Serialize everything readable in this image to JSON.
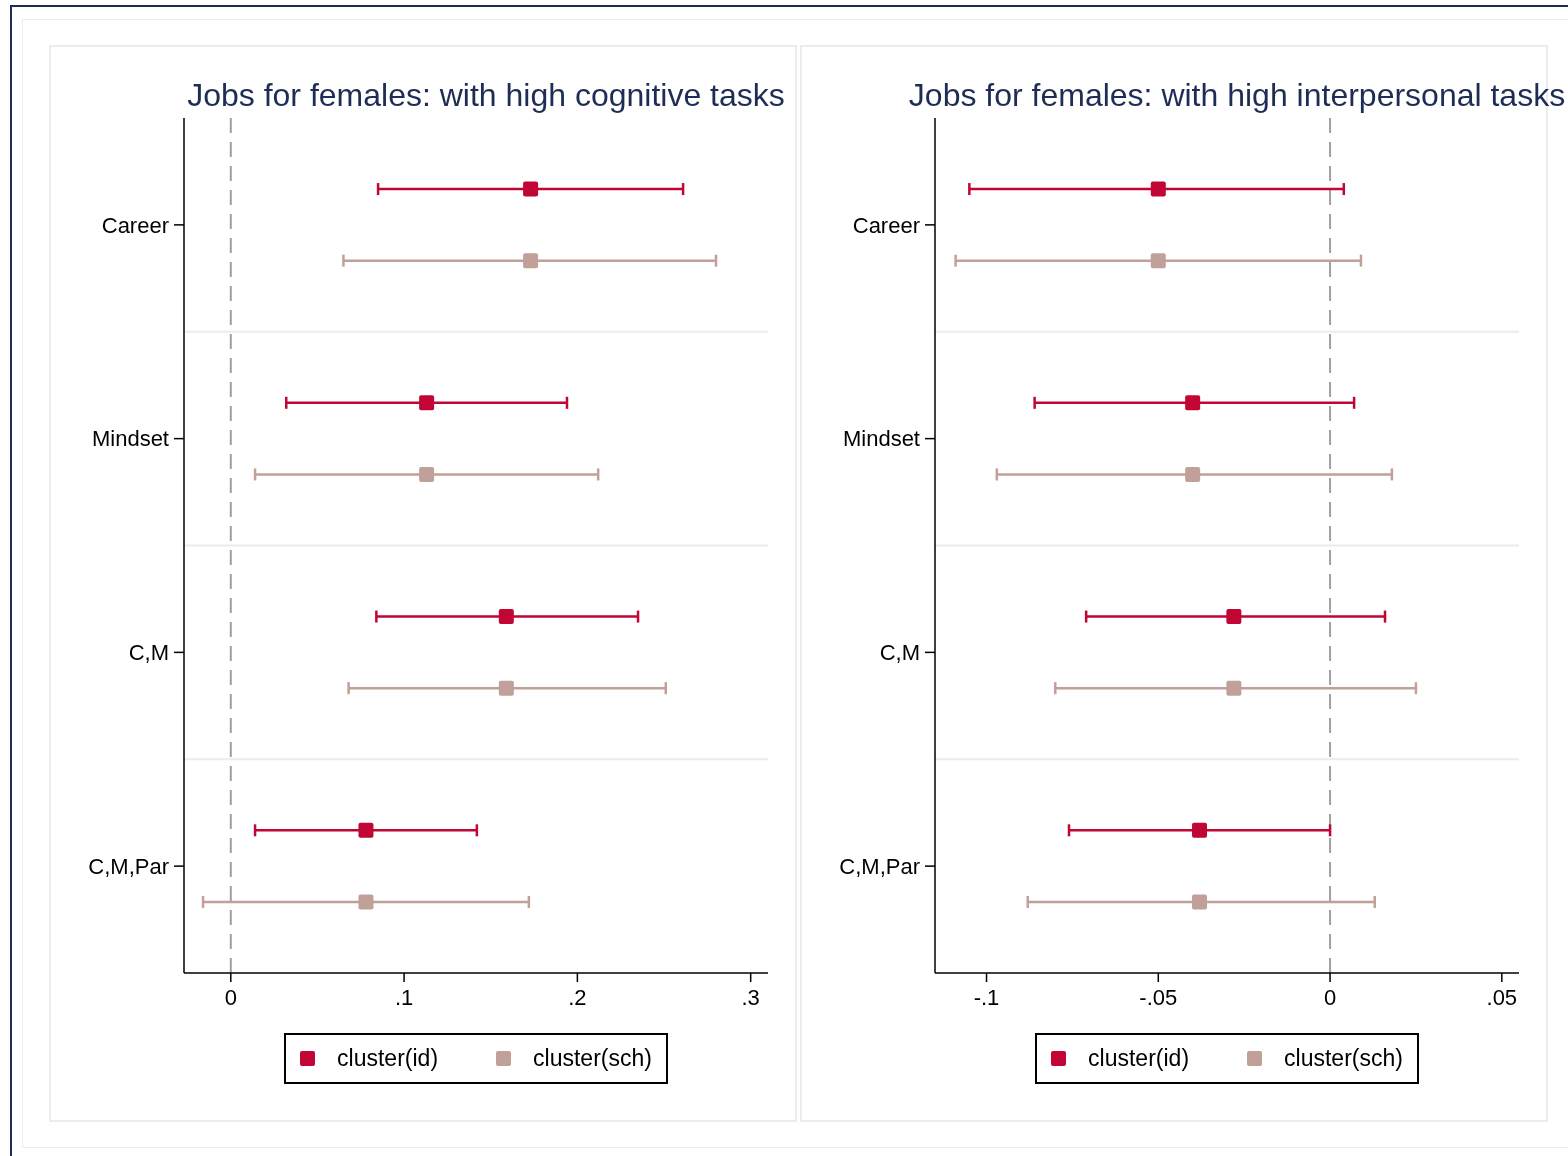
{
  "chart_data": [
    {
      "type": "scatter",
      "orientation": "horizontal",
      "title": "Jobs for females: with high cognitive tasks",
      "categories": [
        "Career",
        "Mindset",
        "C,M",
        "C,M,Par"
      ],
      "series": [
        {
          "name": "cluster(id)",
          "color": "#c10534",
          "values": [
            0.173,
            0.113,
            0.159,
            0.078
          ],
          "errors": [
            [
              0.085,
              0.261
            ],
            [
              0.032,
              0.194
            ],
            [
              0.084,
              0.235
            ],
            [
              0.014,
              0.142
            ]
          ]
        },
        {
          "name": "cluster(sch)",
          "color": "#c0a098",
          "values": [
            0.173,
            0.113,
            0.159,
            0.078
          ],
          "errors": [
            [
              0.065,
              0.28
            ],
            [
              0.014,
              0.212
            ],
            [
              0.068,
              0.251
            ],
            [
              -0.016,
              0.172
            ]
          ]
        }
      ],
      "xlim": [
        -0.027,
        0.31
      ],
      "xticks": [
        0,
        {
          "value": 0.1,
          "label": ".1"
        },
        {
          "value": 0.2,
          "label": ".2"
        },
        {
          "value": 0.3,
          "label": ".3"
        }
      ],
      "ref_lines": [
        {
          "axis": "x",
          "value": 0,
          "color": "#a0a0a0",
          "line_style": "dashed"
        }
      ],
      "grid": "y",
      "legend": "bottom",
      "marker": "square"
    },
    {
      "type": "scatter",
      "orientation": "horizontal",
      "title": "Jobs for females: with high interpersonal tasks",
      "categories": [
        "Career",
        "Mindset",
        "C,M",
        "C,M,Par"
      ],
      "series": [
        {
          "name": "cluster(id)",
          "color": "#c10534",
          "values": [
            -0.05,
            -0.04,
            -0.028,
            -0.038
          ],
          "errors": [
            [
              -0.105,
              0.004
            ],
            [
              -0.086,
              0.007
            ],
            [
              -0.071,
              0.016
            ],
            [
              -0.076,
              0
            ]
          ]
        },
        {
          "name": "cluster(sch)",
          "color": "#c0a098",
          "values": [
            -0.05,
            -0.04,
            -0.028,
            -0.038
          ],
          "errors": [
            [
              -0.109,
              0.009
            ],
            [
              -0.097,
              0.018
            ],
            [
              -0.08,
              0.025
            ],
            [
              -0.088,
              0.013
            ]
          ]
        }
      ],
      "xlim": [
        -0.115,
        0.055
      ],
      "xticks": [
        {
          "value": -0.1,
          "label": "-.1"
        },
        {
          "value": -0.05,
          "label": "-.05"
        },
        0,
        {
          "value": 0.05,
          "label": ".05"
        }
      ],
      "ref_lines": [
        {
          "axis": "x",
          "value": 0,
          "color": "#a0a0a0",
          "line_style": "dashed"
        }
      ],
      "grid": "y",
      "legend": "bottom",
      "marker": "square"
    }
  ]
}
